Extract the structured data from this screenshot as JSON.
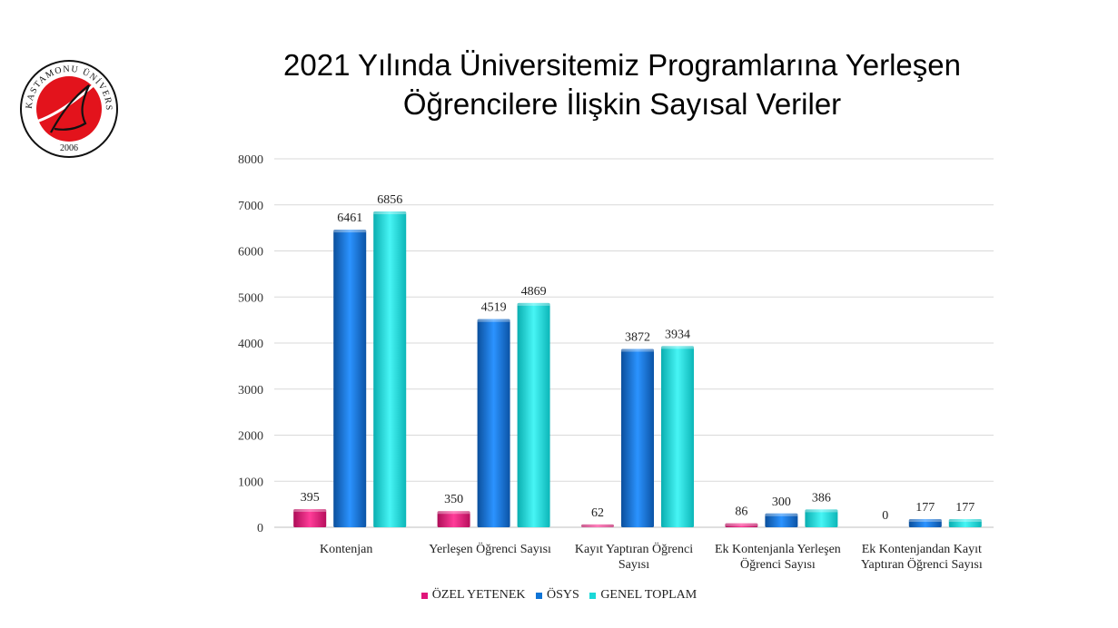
{
  "title_lines": [
    "2021 Yılında Üniversitemiz Programlarına Yerleşen",
    "Öğrencilere İlişkin Sayısal Veriler"
  ],
  "logo": {
    "text": "KASTAMONU ÜNİVERSİTESİ",
    "year": "2006",
    "colors": {
      "red": "#e3131c",
      "black": "#111111"
    }
  },
  "chart_data": {
    "type": "bar",
    "categories": [
      [
        "Kontenjan"
      ],
      [
        "Yerleşen Öğrenci Sayısı"
      ],
      [
        "Kayıt Yaptıran Öğrenci",
        "Sayısı"
      ],
      [
        "Ek Kontenjanla Yerleşen",
        "Öğrenci Sayısı"
      ],
      [
        "Ek Kontenjandan Kayıt",
        "Yaptıran Öğrenci Sayısı"
      ]
    ],
    "series": [
      {
        "name": "ÖZEL YETENEK",
        "values": [
          395,
          350,
          62,
          86,
          0
        ],
        "color": "#e0157a"
      },
      {
        "name": "ÖSYS",
        "values": [
          6461,
          4519,
          3872,
          300,
          177
        ],
        "color": "#0f74d6"
      },
      {
        "name": "GENEL TOPLAM",
        "values": [
          6856,
          4869,
          3934,
          386,
          177
        ],
        "color": "#1ad8d8"
      }
    ],
    "ylim": [
      0,
      8000
    ],
    "yticks": [
      0,
      1000,
      2000,
      3000,
      4000,
      5000,
      6000,
      7000,
      8000
    ],
    "grid": true,
    "legend_position": "bottom"
  }
}
